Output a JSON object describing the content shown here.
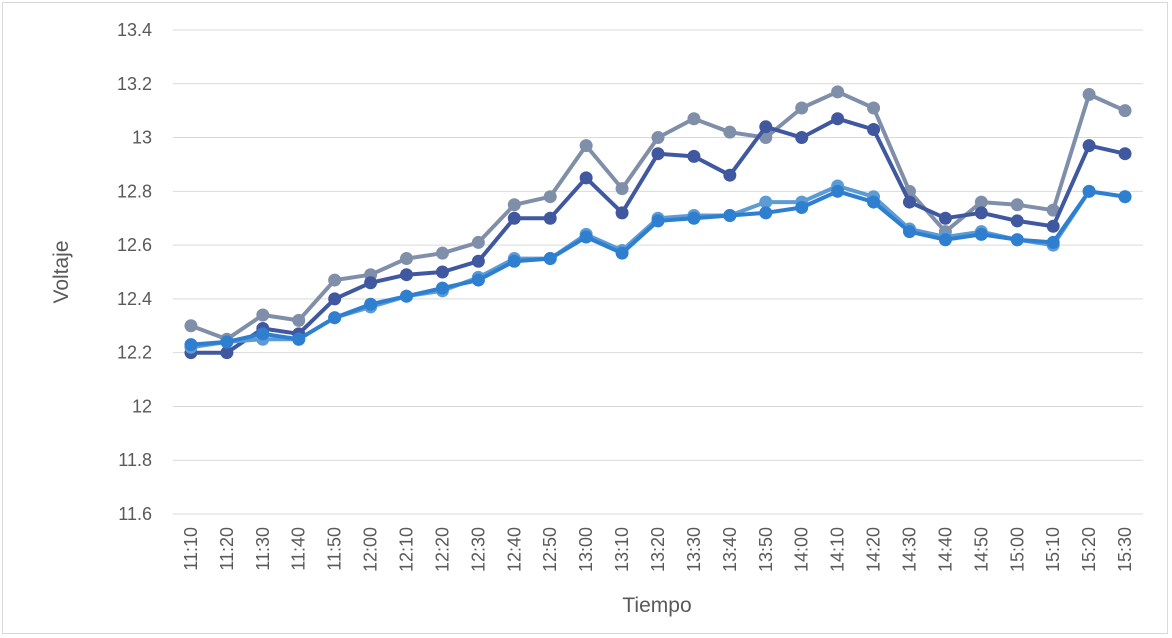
{
  "chart_data": {
    "type": "line",
    "title": "",
    "xlabel": "Tiempo",
    "ylabel": "Voltaje",
    "ylim": [
      11.6,
      13.4
    ],
    "yticks": [
      "11.6",
      "11.8",
      "12",
      "12.2",
      "12.4",
      "12.6",
      "12.8",
      "13",
      "13.2",
      "13.4"
    ],
    "grid": true,
    "legend": "none",
    "categories": [
      "11:10",
      "11:20",
      "11:30",
      "11:40",
      "11:50",
      "12:00",
      "12:10",
      "12:20",
      "12:30",
      "12:40",
      "12:50",
      "13:00",
      "13:10",
      "13:20",
      "13:30",
      "13:40",
      "13:50",
      "14:00",
      "14:10",
      "14:20",
      "14:30",
      "14:40",
      "14:50",
      "15:00",
      "15:10",
      "15:20",
      "15:30"
    ],
    "series": [
      {
        "color": "#7f8fa9",
        "values": [
          12.3,
          12.25,
          12.34,
          12.32,
          12.47,
          12.49,
          12.55,
          12.57,
          12.61,
          12.75,
          12.78,
          12.97,
          12.81,
          13.0,
          13.07,
          13.02,
          13.0,
          13.11,
          13.17,
          13.11,
          12.8,
          12.65,
          12.76,
          12.75,
          12.73,
          13.16,
          13.1
        ]
      },
      {
        "color": "#4058a0",
        "values": [
          12.2,
          12.2,
          12.29,
          12.27,
          12.4,
          12.46,
          12.49,
          12.5,
          12.54,
          12.7,
          12.7,
          12.85,
          12.72,
          12.94,
          12.93,
          12.86,
          13.04,
          13.0,
          13.07,
          13.03,
          12.76,
          12.7,
          12.72,
          12.69,
          12.67,
          12.97,
          12.94
        ]
      },
      {
        "color": "#5d9bd5",
        "values": [
          12.22,
          12.24,
          12.25,
          12.25,
          12.33,
          12.37,
          12.41,
          12.43,
          12.48,
          12.55,
          12.55,
          12.64,
          12.58,
          12.7,
          12.71,
          12.71,
          12.76,
          12.76,
          12.82,
          12.78,
          12.66,
          12.63,
          12.65,
          12.62,
          12.6,
          12.8,
          12.78
        ]
      },
      {
        "color": "#2e7fd0",
        "values": [
          12.23,
          12.24,
          12.27,
          12.25,
          12.33,
          12.38,
          12.41,
          12.44,
          12.47,
          12.54,
          12.55,
          12.63,
          12.57,
          12.69,
          12.7,
          12.71,
          12.72,
          12.74,
          12.8,
          12.76,
          12.65,
          12.62,
          12.64,
          12.62,
          12.61,
          12.8,
          12.78
        ]
      }
    ]
  }
}
